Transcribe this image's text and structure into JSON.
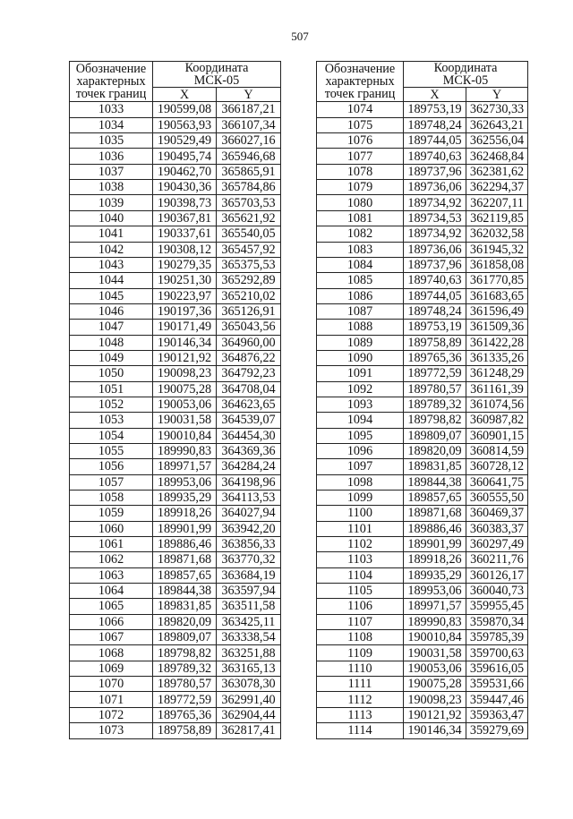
{
  "page_number": "507",
  "header": {
    "col1": [
      "Обозначение",
      "характерных",
      "точек границ"
    ],
    "coord": [
      "Координата",
      "МСК-05"
    ],
    "x": "X",
    "y": "Y"
  },
  "left_rows": [
    [
      "1033",
      "190599,08",
      "366187,21"
    ],
    [
      "1034",
      "190563,93",
      "366107,34"
    ],
    [
      "1035",
      "190529,49",
      "366027,16"
    ],
    [
      "1036",
      "190495,74",
      "365946,68"
    ],
    [
      "1037",
      "190462,70",
      "365865,91"
    ],
    [
      "1038",
      "190430,36",
      "365784,86"
    ],
    [
      "1039",
      "190398,73",
      "365703,53"
    ],
    [
      "1040",
      "190367,81",
      "365621,92"
    ],
    [
      "1041",
      "190337,61",
      "365540,05"
    ],
    [
      "1042",
      "190308,12",
      "365457,92"
    ],
    [
      "1043",
      "190279,35",
      "365375,53"
    ],
    [
      "1044",
      "190251,30",
      "365292,89"
    ],
    [
      "1045",
      "190223,97",
      "365210,02"
    ],
    [
      "1046",
      "190197,36",
      "365126,91"
    ],
    [
      "1047",
      "190171,49",
      "365043,56"
    ],
    [
      "1048",
      "190146,34",
      "364960,00"
    ],
    [
      "1049",
      "190121,92",
      "364876,22"
    ],
    [
      "1050",
      "190098,23",
      "364792,23"
    ],
    [
      "1051",
      "190075,28",
      "364708,04"
    ],
    [
      "1052",
      "190053,06",
      "364623,65"
    ],
    [
      "1053",
      "190031,58",
      "364539,07"
    ],
    [
      "1054",
      "190010,84",
      "364454,30"
    ],
    [
      "1055",
      "189990,83",
      "364369,36"
    ],
    [
      "1056",
      "189971,57",
      "364284,24"
    ],
    [
      "1057",
      "189953,06",
      "364198,96"
    ],
    [
      "1058",
      "189935,29",
      "364113,53"
    ],
    [
      "1059",
      "189918,26",
      "364027,94"
    ],
    [
      "1060",
      "189901,99",
      "363942,20"
    ],
    [
      "1061",
      "189886,46",
      "363856,33"
    ],
    [
      "1062",
      "189871,68",
      "363770,32"
    ],
    [
      "1063",
      "189857,65",
      "363684,19"
    ],
    [
      "1064",
      "189844,38",
      "363597,94"
    ],
    [
      "1065",
      "189831,85",
      "363511,58"
    ],
    [
      "1066",
      "189820,09",
      "363425,11"
    ],
    [
      "1067",
      "189809,07",
      "363338,54"
    ],
    [
      "1068",
      "189798,82",
      "363251,88"
    ],
    [
      "1069",
      "189789,32",
      "363165,13"
    ],
    [
      "1070",
      "189780,57",
      "363078,30"
    ],
    [
      "1071",
      "189772,59",
      "362991,40"
    ],
    [
      "1072",
      "189765,36",
      "362904,44"
    ],
    [
      "1073",
      "189758,89",
      "362817,41"
    ]
  ],
  "right_rows": [
    [
      "1074",
      "189753,19",
      "362730,33"
    ],
    [
      "1075",
      "189748,24",
      "362643,21"
    ],
    [
      "1076",
      "189744,05",
      "362556,04"
    ],
    [
      "1077",
      "189740,63",
      "362468,84"
    ],
    [
      "1078",
      "189737,96",
      "362381,62"
    ],
    [
      "1079",
      "189736,06",
      "362294,37"
    ],
    [
      "1080",
      "189734,92",
      "362207,11"
    ],
    [
      "1081",
      "189734,53",
      "362119,85"
    ],
    [
      "1082",
      "189734,92",
      "362032,58"
    ],
    [
      "1083",
      "189736,06",
      "361945,32"
    ],
    [
      "1084",
      "189737,96",
      "361858,08"
    ],
    [
      "1085",
      "189740,63",
      "361770,85"
    ],
    [
      "1086",
      "189744,05",
      "361683,65"
    ],
    [
      "1087",
      "189748,24",
      "361596,49"
    ],
    [
      "1088",
      "189753,19",
      "361509,36"
    ],
    [
      "1089",
      "189758,89",
      "361422,28"
    ],
    [
      "1090",
      "189765,36",
      "361335,26"
    ],
    [
      "1091",
      "189772,59",
      "361248,29"
    ],
    [
      "1092",
      "189780,57",
      "361161,39"
    ],
    [
      "1093",
      "189789,32",
      "361074,56"
    ],
    [
      "1094",
      "189798,82",
      "360987,82"
    ],
    [
      "1095",
      "189809,07",
      "360901,15"
    ],
    [
      "1096",
      "189820,09",
      "360814,59"
    ],
    [
      "1097",
      "189831,85",
      "360728,12"
    ],
    [
      "1098",
      "189844,38",
      "360641,75"
    ],
    [
      "1099",
      "189857,65",
      "360555,50"
    ],
    [
      "1100",
      "189871,68",
      "360469,37"
    ],
    [
      "1101",
      "189886,46",
      "360383,37"
    ],
    [
      "1102",
      "189901,99",
      "360297,49"
    ],
    [
      "1103",
      "189918,26",
      "360211,76"
    ],
    [
      "1104",
      "189935,29",
      "360126,17"
    ],
    [
      "1105",
      "189953,06",
      "360040,73"
    ],
    [
      "1106",
      "189971,57",
      "359955,45"
    ],
    [
      "1107",
      "189990,83",
      "359870,34"
    ],
    [
      "1108",
      "190010,84",
      "359785,39"
    ],
    [
      "1109",
      "190031,58",
      "359700,63"
    ],
    [
      "1110",
      "190053,06",
      "359616,05"
    ],
    [
      "1111",
      "190075,28",
      "359531,66"
    ],
    [
      "1112",
      "190098,23",
      "359447,46"
    ],
    [
      "1113",
      "190121,92",
      "359363,47"
    ],
    [
      "1114",
      "190146,34",
      "359279,69"
    ]
  ]
}
